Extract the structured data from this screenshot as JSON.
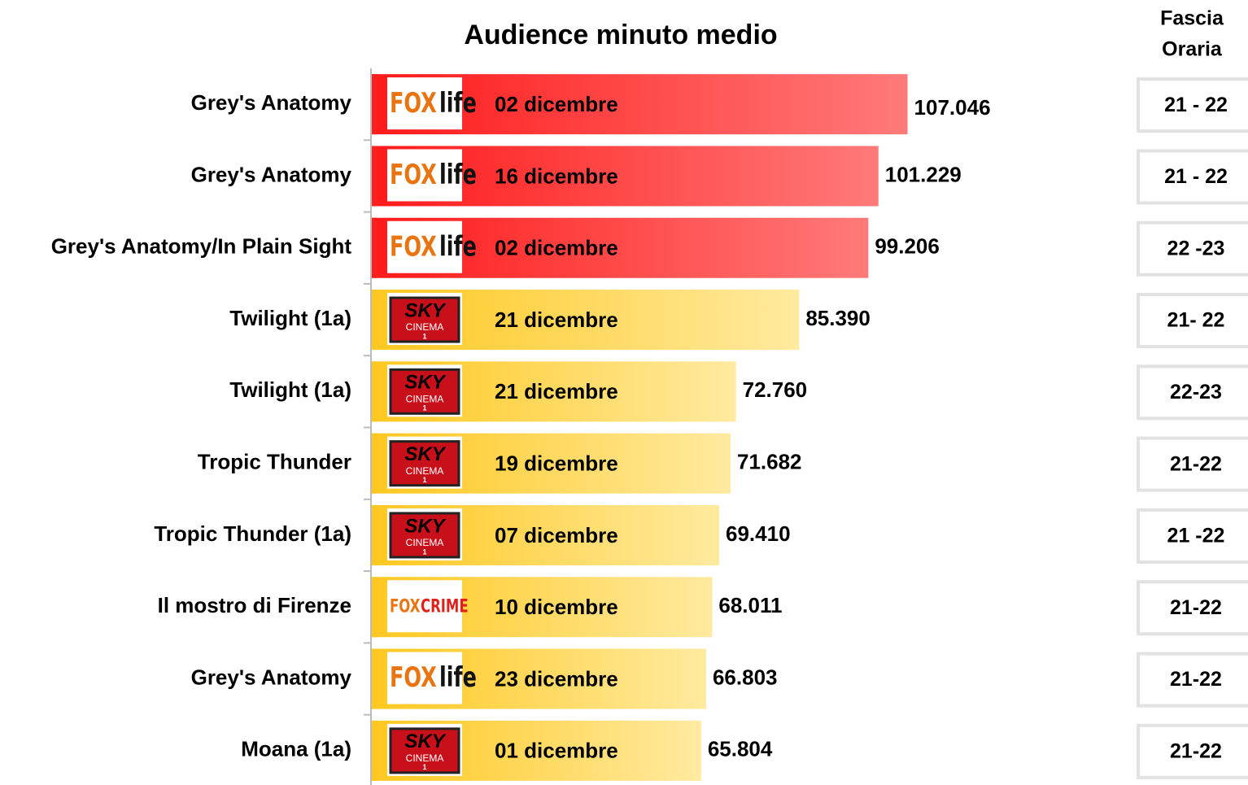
{
  "chart_data": {
    "type": "bar",
    "orientation": "horizontal",
    "title": "Audience minuto medio",
    "slot_header": [
      "Fascia",
      "Oraria"
    ],
    "categories": [
      "Grey's Anatomy",
      "Grey's Anatomy",
      "Grey's Anatomy/In Plain Sight",
      "Twilight (1a)",
      "Twilight (1a)",
      "Tropic Thunder",
      "Tropic Thunder (1a)",
      "Il mostro di Firenze",
      "Grey's Anatomy",
      "Moana (1a)"
    ],
    "series": [
      {
        "values": [
          107046,
          101229,
          99206,
          85390,
          72760,
          71682,
          69410,
          68011,
          66803,
          65804
        ],
        "value_labels": [
          "107.046",
          "101.229",
          "99.206",
          "85.390",
          "72.760",
          "71.682",
          "69.410",
          "68.011",
          "66.803",
          "65.804"
        ],
        "colors": [
          "#ff2020",
          "#ff2020",
          "#ff2020",
          "#ffc820",
          "#ffc820",
          "#ffc820",
          "#ffc820",
          "#ffc820",
          "#ffc820",
          "#ffc820"
        ]
      }
    ],
    "dates": [
      "02 dicembre",
      "16 dicembre",
      "02 dicembre",
      "21 dicembre",
      "21 dicembre",
      "19 dicembre",
      "07 dicembre",
      "10 dicembre",
      "23 dicembre",
      "01 dicembre"
    ],
    "channels": [
      {
        "brand": "FOX",
        "sub": "life"
      },
      {
        "brand": "FOX",
        "sub": "life"
      },
      {
        "brand": "FOX",
        "sub": "life"
      },
      {
        "brand": "SKY",
        "sub": "CINEMA",
        "num": "1"
      },
      {
        "brand": "SKY",
        "sub": "CINEMA",
        "num": "1"
      },
      {
        "brand": "SKY",
        "sub": "CINEMA",
        "num": "1"
      },
      {
        "brand": "SKY",
        "sub": "CINEMA",
        "num": "1"
      },
      {
        "brand": "FOX",
        "sub": "CRIME"
      },
      {
        "brand": "FOX",
        "sub": "life"
      },
      {
        "brand": "SKY",
        "sub": "CINEMA",
        "num": "1"
      }
    ],
    "slots": [
      "21 - 22",
      "21 - 22",
      "22 -23",
      "21- 22",
      "22-23",
      "21-22",
      "21 -22",
      "21-22",
      "21-22",
      "21-22"
    ],
    "xlim": [
      0,
      125000
    ]
  }
}
